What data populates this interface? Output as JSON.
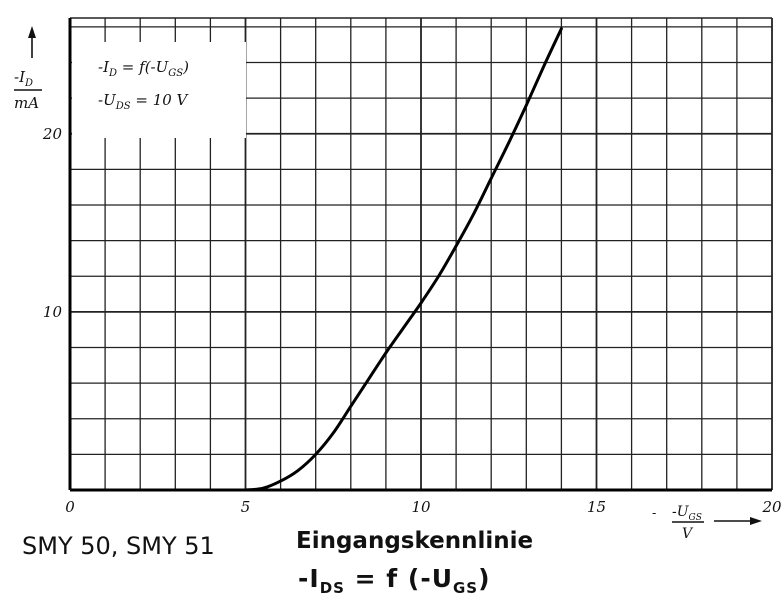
{
  "chart_data": {
    "type": "line",
    "xlabel": "-U_GS / V",
    "xlabel_num": "-U",
    "xlabel_sub": "GS",
    "xlabel_unit": "V",
    "ylabel_num": "-I",
    "ylabel_sub": "D",
    "ylabel_unit": "mA",
    "xlim": [
      0,
      20
    ],
    "ylim": [
      0,
      26.5
    ],
    "x_ticks": [
      "0",
      "5",
      "10",
      "15",
      "20"
    ],
    "y_ticks": [
      "10",
      "20"
    ],
    "grid": true,
    "legend": {
      "line1_main": "-I",
      "line1_sub": "D",
      "line1_rest": " = f(-U",
      "line1_sub2": "GS",
      "line1_end": ")",
      "line2_main": "-U",
      "line2_sub": "DS",
      "line2_rest": " = 10 V",
      "placement": "top-left"
    },
    "series": [
      {
        "x": [
          5.0,
          5.5,
          6.0,
          6.5,
          7.0,
          7.5,
          8.0,
          8.5,
          9.0,
          9.5,
          10.0,
          10.5,
          11.0,
          11.5,
          12.0,
          12.5,
          13.0,
          13.5,
          14.0
        ],
        "y": [
          0.0,
          0.1,
          0.5,
          1.1,
          2.0,
          3.2,
          4.7,
          6.2,
          7.7,
          9.1,
          10.5,
          12.0,
          13.7,
          15.5,
          17.5,
          19.5,
          21.6,
          23.8,
          25.9
        ]
      }
    ]
  },
  "caption": {
    "devices": "SMY 50, SMY 51",
    "title": "Eingangskennlinie",
    "formula_left": "-I",
    "formula_left_sub": "DS",
    "formula_mid": " = f (-U",
    "formula_right_sub": "GS",
    "formula_end": ")"
  }
}
